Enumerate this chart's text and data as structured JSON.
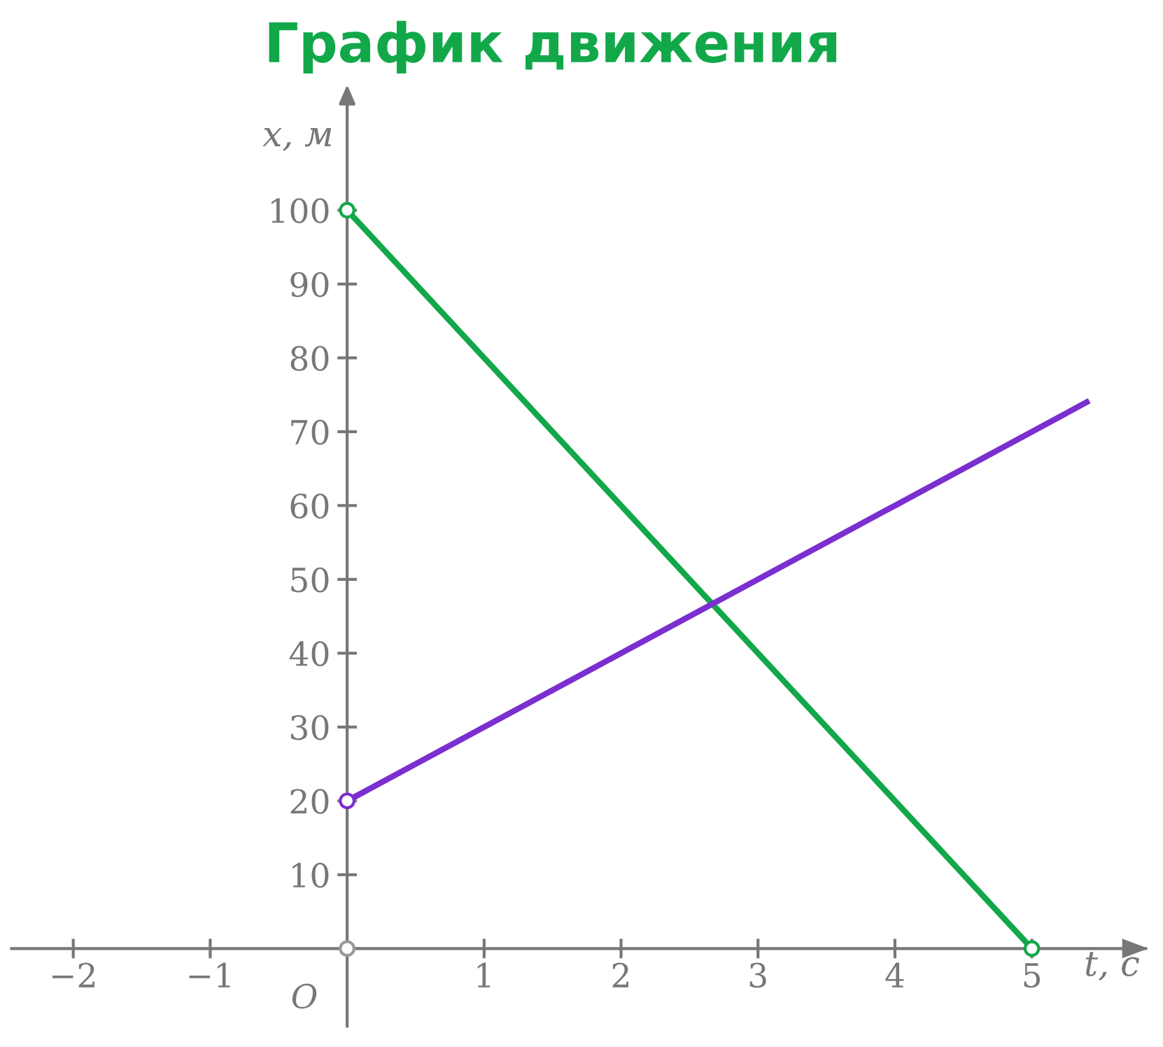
{
  "chart_data": {
    "type": "line",
    "title": "График движения",
    "xlabel": "t, с",
    "ylabel": "x, м",
    "annotations": [
      "O"
    ],
    "xlim": [
      -2.45,
      5.83
    ],
    "ylim": [
      -10.5,
      115
    ],
    "xticks": [
      {
        "value": -2,
        "label": "−2"
      },
      {
        "value": -1,
        "label": "−1"
      },
      1,
      2,
      3,
      4,
      5
    ],
    "yticks": [
      10,
      20,
      30,
      40,
      50,
      60,
      70,
      80,
      90,
      100
    ],
    "grid": false,
    "legend": false,
    "series": [
      {
        "color": "#12a84a",
        "x": [
          0,
          5
        ],
        "values": [
          100,
          0
        ],
        "marker": "circle"
      },
      {
        "color": "#7b2fd0",
        "x": [
          0,
          5.4
        ],
        "values": [
          20,
          74
        ],
        "marker": "none"
      },
      {
        "type": "scatter",
        "color": "#7b2fd0",
        "x": [
          0
        ],
        "values": [
          20
        ],
        "marker": "circle"
      },
      {
        "type": "scatter",
        "color": "#999999",
        "x": [
          0
        ],
        "values": [
          0
        ],
        "marker": "circle"
      }
    ]
  }
}
